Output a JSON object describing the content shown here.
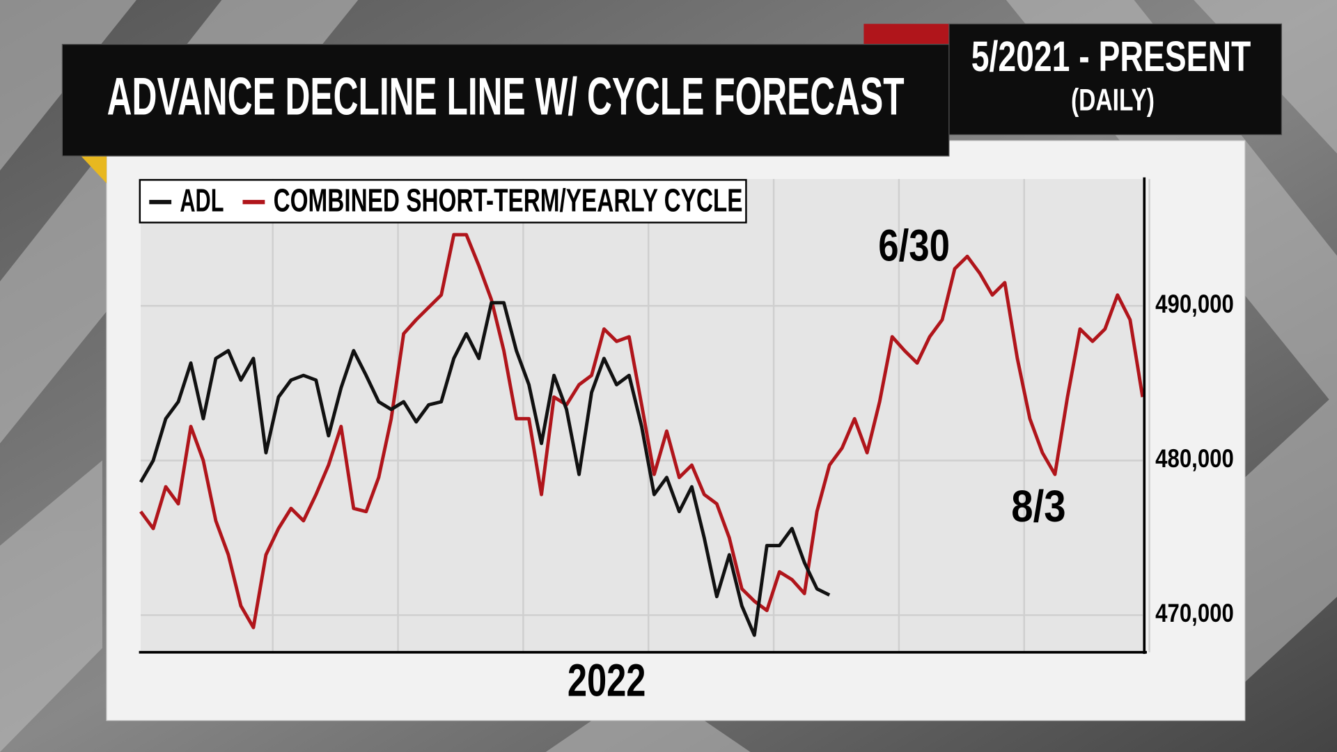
{
  "chart_data": {
    "type": "line",
    "title": "ADVANCE DECLINE LINE W/ CYCLE FORECAST",
    "period": "5/2021 - PRESENT",
    "frequency": "(DAILY)",
    "categories": [
      null,
      null,
      null,
      null,
      null,
      null,
      null,
      null,
      null,
      null,
      null,
      null,
      null,
      null,
      null,
      null,
      null,
      null,
      null,
      null,
      null,
      null,
      null,
      null,
      null,
      null,
      null,
      null,
      null,
      null,
      null,
      null,
      null,
      null,
      null,
      null,
      null,
      "2022",
      null,
      null,
      null,
      null,
      null,
      null,
      null,
      null,
      null,
      null,
      null,
      null,
      null,
      null,
      null,
      null,
      null,
      null,
      null,
      null,
      null,
      null,
      null,
      null,
      null,
      null,
      null,
      null,
      null,
      null,
      null,
      null,
      null,
      null,
      null,
      null,
      null,
      null,
      null,
      null,
      null,
      null,
      null
    ],
    "series": [
      {
        "name": "ADL",
        "color": "#111111",
        "values": [
          478600,
          480000,
          482700,
          483800,
          486300,
          482700,
          486600,
          487100,
          485200,
          486600,
          480500,
          484100,
          485200,
          485500,
          485200,
          481600,
          484700,
          487100,
          485500,
          483800,
          483300,
          483800,
          482500,
          483600,
          483800,
          486600,
          488200,
          486600,
          490200,
          490200,
          487100,
          484900,
          481100,
          485500,
          483300,
          479100,
          484400,
          486600,
          484900,
          485500,
          482200,
          477800,
          478900,
          476700,
          478300,
          475000,
          471200,
          473900,
          470600,
          468700,
          474500,
          474500,
          475600,
          473400,
          471700,
          471300,
          null,
          null,
          null,
          null,
          null,
          null,
          null,
          null,
          null,
          null,
          null,
          null,
          null,
          null,
          null,
          null,
          null,
          null,
          null,
          null,
          null,
          null,
          null,
          null,
          null
        ]
      },
      {
        "name": "COMBINED SHORT-TERM/YEARLY CYCLE",
        "color": "#b0151b",
        "values": [
          476700,
          475600,
          478300,
          477200,
          482200,
          480000,
          476100,
          473900,
          470600,
          469200,
          473900,
          475600,
          476900,
          476100,
          477800,
          479700,
          482200,
          476900,
          476700,
          478900,
          482700,
          488200,
          489100,
          489900,
          490700,
          494600,
          494600,
          492600,
          490400,
          487100,
          482700,
          482700,
          477800,
          484100,
          483600,
          484900,
          485500,
          488500,
          487700,
          488000,
          483600,
          479100,
          481900,
          478900,
          479700,
          477800,
          477200,
          475000,
          471700,
          470900,
          470300,
          472800,
          472300,
          471400,
          476700,
          479700,
          480800,
          482700,
          480500,
          483800,
          488000,
          487100,
          486300,
          488000,
          489100,
          492400,
          493200,
          492100,
          490700,
          491500,
          486600,
          482700,
          480500,
          479100,
          484100,
          488500,
          487700,
          488500,
          490700,
          489100,
          484100
        ]
      }
    ],
    "ylim": [
      467600,
      498200
    ],
    "yticks": [
      {
        "value": 470000,
        "label": "470,000"
      },
      {
        "value": 480000,
        "label": "480,000"
      },
      {
        "value": 490000,
        "label": "490,000"
      }
    ],
    "grid": true,
    "legend": "upper left",
    "annotations": [
      "6/30",
      "8/3"
    ]
  }
}
